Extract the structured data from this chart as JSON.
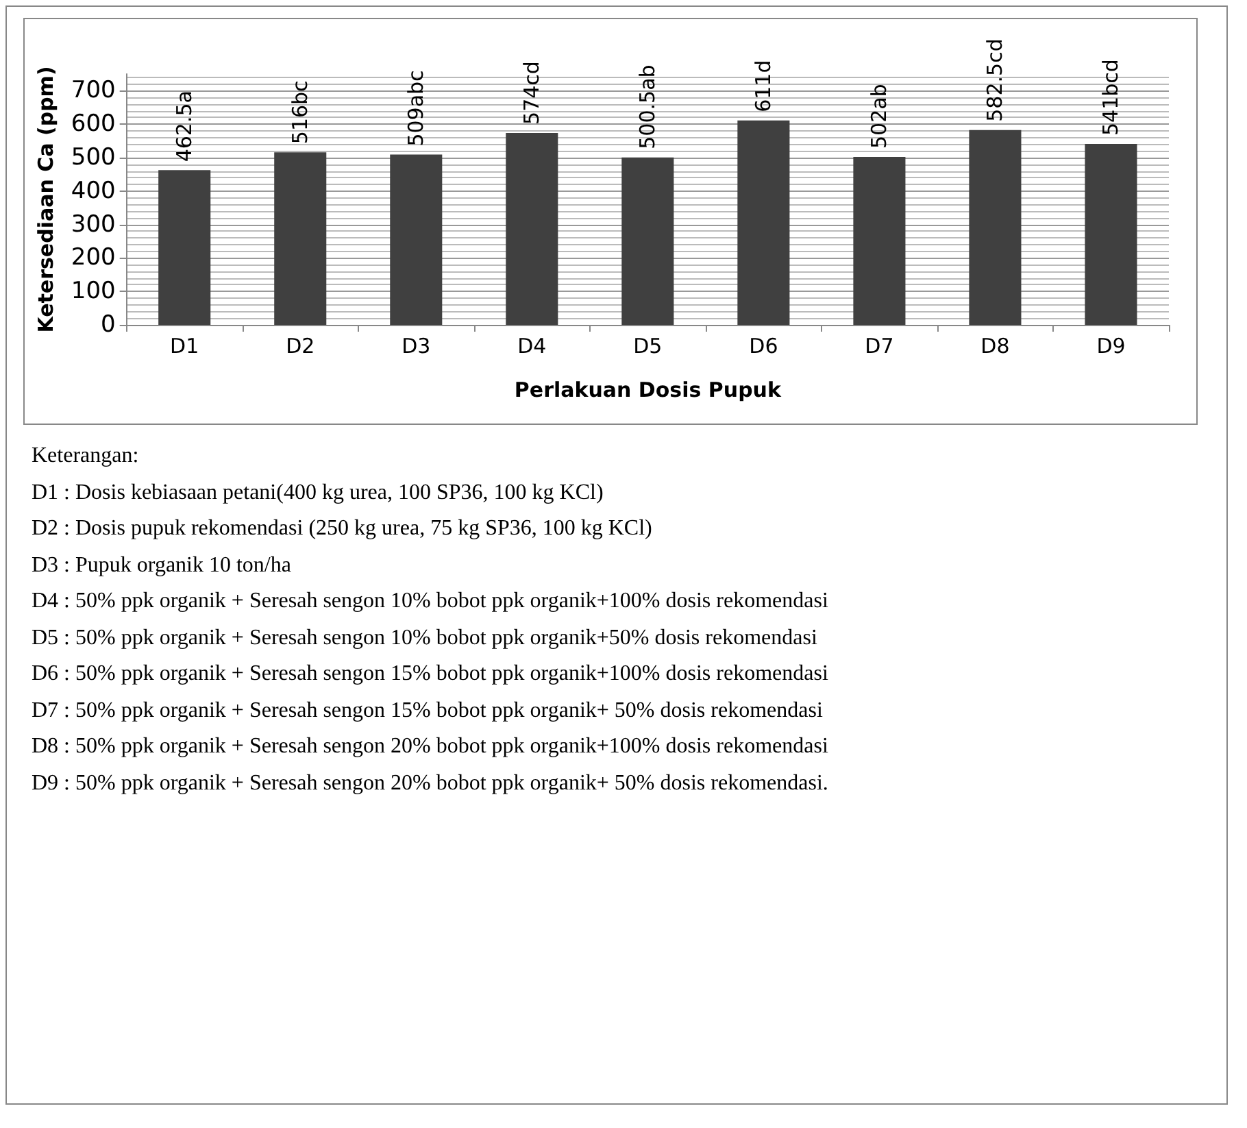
{
  "chart_data": {
    "type": "bar",
    "xlabel": "Perlakuan Dosis Pupuk",
    "ylabel": "Ketersediaan Ca (ppm)",
    "categories": [
      "D1",
      "D2",
      "D3",
      "D4",
      "D5",
      "D6",
      "D7",
      "D8",
      "D9"
    ],
    "values": [
      462.5,
      516,
      509,
      574,
      500.5,
      611,
      502,
      582.5,
      541
    ],
    "value_labels": [
      "462.5a",
      "516bc",
      "509abc",
      "574cd",
      "500.5ab",
      "611d",
      "502ab",
      "582.5cd",
      "541bcd"
    ],
    "color": "#404040",
    "ylim": [
      0,
      750
    ],
    "yticks": [
      0,
      100,
      200,
      300,
      400,
      500,
      600,
      700
    ],
    "grid": "y",
    "annotations": [
      "Keterangan:",
      "D1 : Dosis kebiasaan petani(400 kg urea, 100 SP36, 100 kg KCl)",
      "D2 : Dosis pupuk rekomendasi (250 kg urea, 75 kg SP36, 100 kg KCl)",
      "D3 : Pupuk organik 10 ton/ha",
      "D4 : 50% ppk organik + Seresah sengon 10% bobot ppk organik+100% dosis rekomendasi",
      "D5 : 50% ppk organik + Seresah sengon 10% bobot ppk organik+50% dosis rekomendasi",
      "D6 : 50% ppk organik + Seresah sengon 15% bobot ppk organik+100% dosis rekomendasi",
      "D7 : 50% ppk organik + Seresah sengon 15% bobot ppk organik+ 50% dosis rekomendasi",
      "D8 : 50% ppk organik + Seresah sengon 20% bobot ppk organik+100% dosis rekomendasi",
      "D9 : 50% ppk organik + Seresah sengon 20% bobot ppk organik+ 50% dosis rekomendasi."
    ]
  }
}
